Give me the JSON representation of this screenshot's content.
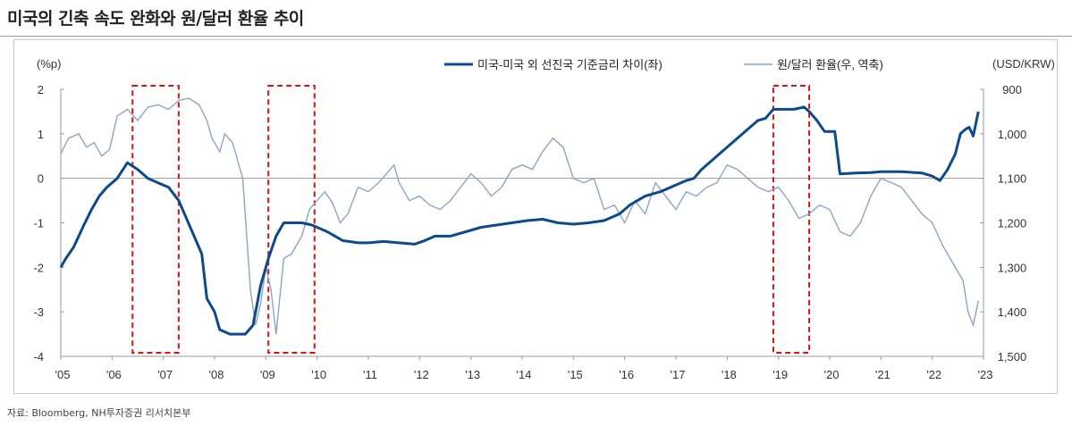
{
  "title": "미국의 긴축 속도 완화와 원/달러 환율 추이",
  "source": "자료: Bloomberg, NH투자증권 리서치본부",
  "chart_data": {
    "type": "line",
    "left_axis": {
      "unit_label": "(%p)",
      "ylim": [
        -4,
        2
      ],
      "ticks": [
        2,
        1,
        0,
        -1,
        -2,
        -3,
        -4
      ]
    },
    "right_axis": {
      "unit_label": "(USD/KRW)",
      "ylim": [
        900,
        1500
      ],
      "inverted": true,
      "ticks": [
        "900",
        "1,000",
        "1,100",
        "1,200",
        "1,300",
        "1,400",
        "1,500"
      ]
    },
    "x_ticks": [
      "'05",
      "'06",
      "'07",
      "'08",
      "'09",
      "'10",
      "'11",
      "'12",
      "'13",
      "'14",
      "'15",
      "'16",
      "'17",
      "'18",
      "'19",
      "'20",
      "'21",
      "'22",
      "'23"
    ],
    "xlim": [
      2005,
      2023
    ],
    "legend_position": "top",
    "series": [
      {
        "name": "미국-미국 외 선진국 기준금리 차이(좌)",
        "axis": "left",
        "color": "#0d4a8c",
        "points": [
          [
            2005.0,
            -2.0
          ],
          [
            2005.1,
            -1.8
          ],
          [
            2005.25,
            -1.55
          ],
          [
            2005.45,
            -1.05
          ],
          [
            2005.6,
            -0.7
          ],
          [
            2005.75,
            -0.4
          ],
          [
            2005.9,
            -0.2
          ],
          [
            2006.1,
            0.0
          ],
          [
            2006.3,
            0.35
          ],
          [
            2006.5,
            0.2
          ],
          [
            2006.7,
            0.0
          ],
          [
            2006.9,
            -0.1
          ],
          [
            2007.1,
            -0.2
          ],
          [
            2007.3,
            -0.5
          ],
          [
            2007.45,
            -0.9
          ],
          [
            2007.6,
            -1.3
          ],
          [
            2007.75,
            -1.7
          ],
          [
            2007.85,
            -2.7
          ],
          [
            2008.0,
            -3.0
          ],
          [
            2008.1,
            -3.4
          ],
          [
            2008.3,
            -3.5
          ],
          [
            2008.6,
            -3.5
          ],
          [
            2008.75,
            -3.3
          ],
          [
            2008.9,
            -2.4
          ],
          [
            2009.05,
            -1.8
          ],
          [
            2009.2,
            -1.3
          ],
          [
            2009.35,
            -1.0
          ],
          [
            2009.7,
            -1.0
          ],
          [
            2009.9,
            -1.05
          ],
          [
            2010.2,
            -1.2
          ],
          [
            2010.5,
            -1.4
          ],
          [
            2010.8,
            -1.45
          ],
          [
            2011.0,
            -1.45
          ],
          [
            2011.3,
            -1.42
          ],
          [
            2011.6,
            -1.45
          ],
          [
            2011.9,
            -1.48
          ],
          [
            2012.1,
            -1.4
          ],
          [
            2012.3,
            -1.3
          ],
          [
            2012.6,
            -1.3
          ],
          [
            2012.9,
            -1.2
          ],
          [
            2013.2,
            -1.1
          ],
          [
            2013.5,
            -1.05
          ],
          [
            2013.8,
            -1.0
          ],
          [
            2014.1,
            -0.95
          ],
          [
            2014.4,
            -0.92
          ],
          [
            2014.7,
            -1.0
          ],
          [
            2015.0,
            -1.03
          ],
          [
            2015.3,
            -1.0
          ],
          [
            2015.6,
            -0.95
          ],
          [
            2015.9,
            -0.8
          ],
          [
            2016.1,
            -0.6
          ],
          [
            2016.4,
            -0.4
          ],
          [
            2016.7,
            -0.3
          ],
          [
            2016.9,
            -0.2
          ],
          [
            2017.0,
            -0.15
          ],
          [
            2017.2,
            -0.05
          ],
          [
            2017.35,
            0.0
          ],
          [
            2017.5,
            0.2
          ],
          [
            2017.65,
            0.35
          ],
          [
            2017.85,
            0.55
          ],
          [
            2018.0,
            0.7
          ],
          [
            2018.2,
            0.9
          ],
          [
            2018.4,
            1.1
          ],
          [
            2018.6,
            1.3
          ],
          [
            2018.75,
            1.35
          ],
          [
            2018.9,
            1.55
          ],
          [
            2019.1,
            1.55
          ],
          [
            2019.3,
            1.55
          ],
          [
            2019.5,
            1.6
          ],
          [
            2019.6,
            1.5
          ],
          [
            2019.75,
            1.3
          ],
          [
            2019.9,
            1.05
          ],
          [
            2020.1,
            1.05
          ],
          [
            2020.2,
            0.1
          ],
          [
            2020.5,
            0.12
          ],
          [
            2020.8,
            0.13
          ],
          [
            2021.0,
            0.15
          ],
          [
            2021.4,
            0.15
          ],
          [
            2021.8,
            0.12
          ],
          [
            2022.0,
            0.05
          ],
          [
            2022.15,
            -0.05
          ],
          [
            2022.3,
            0.2
          ],
          [
            2022.45,
            0.55
          ],
          [
            2022.55,
            1.0
          ],
          [
            2022.65,
            1.1
          ],
          [
            2022.72,
            1.15
          ],
          [
            2022.8,
            0.95
          ],
          [
            2022.9,
            1.5
          ]
        ]
      },
      {
        "name": "원/달러 환율(우, 역축)",
        "axis": "right",
        "color": "#8ea4c4",
        "points": [
          [
            2005.0,
            1045
          ],
          [
            2005.15,
            1010
          ],
          [
            2005.35,
            1000
          ],
          [
            2005.5,
            1030
          ],
          [
            2005.65,
            1020
          ],
          [
            2005.8,
            1050
          ],
          [
            2005.95,
            1035
          ],
          [
            2006.1,
            960
          ],
          [
            2006.3,
            945
          ],
          [
            2006.5,
            970
          ],
          [
            2006.7,
            940
          ],
          [
            2006.9,
            935
          ],
          [
            2007.1,
            945
          ],
          [
            2007.3,
            925
          ],
          [
            2007.5,
            920
          ],
          [
            2007.7,
            935
          ],
          [
            2007.85,
            970
          ],
          [
            2007.95,
            1010
          ],
          [
            2008.1,
            1040
          ],
          [
            2008.2,
            1000
          ],
          [
            2008.35,
            1020
          ],
          [
            2008.55,
            1100
          ],
          [
            2008.7,
            1350
          ],
          [
            2008.8,
            1430
          ],
          [
            2008.9,
            1380
          ],
          [
            2009.0,
            1300
          ],
          [
            2009.1,
            1350
          ],
          [
            2009.2,
            1450
          ],
          [
            2009.35,
            1280
          ],
          [
            2009.5,
            1270
          ],
          [
            2009.7,
            1230
          ],
          [
            2009.85,
            1170
          ],
          [
            2010.0,
            1150
          ],
          [
            2010.15,
            1130
          ],
          [
            2010.3,
            1155
          ],
          [
            2010.45,
            1200
          ],
          [
            2010.6,
            1180
          ],
          [
            2010.8,
            1120
          ],
          [
            2011.0,
            1130
          ],
          [
            2011.2,
            1110
          ],
          [
            2011.35,
            1090
          ],
          [
            2011.5,
            1070
          ],
          [
            2011.6,
            1110
          ],
          [
            2011.8,
            1150
          ],
          [
            2012.0,
            1140
          ],
          [
            2012.2,
            1160
          ],
          [
            2012.4,
            1170
          ],
          [
            2012.6,
            1150
          ],
          [
            2012.8,
            1120
          ],
          [
            2013.0,
            1090
          ],
          [
            2013.2,
            1110
          ],
          [
            2013.4,
            1140
          ],
          [
            2013.6,
            1120
          ],
          [
            2013.8,
            1080
          ],
          [
            2014.0,
            1070
          ],
          [
            2014.2,
            1080
          ],
          [
            2014.4,
            1040
          ],
          [
            2014.6,
            1010
          ],
          [
            2014.8,
            1030
          ],
          [
            2015.0,
            1100
          ],
          [
            2015.2,
            1110
          ],
          [
            2015.4,
            1100
          ],
          [
            2015.6,
            1170
          ],
          [
            2015.8,
            1160
          ],
          [
            2016.0,
            1200
          ],
          [
            2016.2,
            1150
          ],
          [
            2016.4,
            1180
          ],
          [
            2016.6,
            1110
          ],
          [
            2016.8,
            1140
          ],
          [
            2017.0,
            1170
          ],
          [
            2017.2,
            1130
          ],
          [
            2017.4,
            1140
          ],
          [
            2017.6,
            1120
          ],
          [
            2017.8,
            1110
          ],
          [
            2018.0,
            1070
          ],
          [
            2018.2,
            1080
          ],
          [
            2018.4,
            1100
          ],
          [
            2018.6,
            1120
          ],
          [
            2018.8,
            1130
          ],
          [
            2019.0,
            1120
          ],
          [
            2019.2,
            1150
          ],
          [
            2019.4,
            1190
          ],
          [
            2019.6,
            1180
          ],
          [
            2019.8,
            1160
          ],
          [
            2020.0,
            1170
          ],
          [
            2020.2,
            1220
          ],
          [
            2020.4,
            1230
          ],
          [
            2020.6,
            1200
          ],
          [
            2020.8,
            1140
          ],
          [
            2021.0,
            1100
          ],
          [
            2021.2,
            1110
          ],
          [
            2021.4,
            1120
          ],
          [
            2021.6,
            1150
          ],
          [
            2021.8,
            1180
          ],
          [
            2022.0,
            1200
          ],
          [
            2022.2,
            1250
          ],
          [
            2022.4,
            1290
          ],
          [
            2022.6,
            1330
          ],
          [
            2022.7,
            1400
          ],
          [
            2022.8,
            1430
          ],
          [
            2022.9,
            1375
          ]
        ]
      }
    ],
    "highlight_periods": [
      [
        2006.4,
        2007.3
      ],
      [
        2009.05,
        2009.95
      ],
      [
        2018.9,
        2019.6
      ]
    ]
  }
}
